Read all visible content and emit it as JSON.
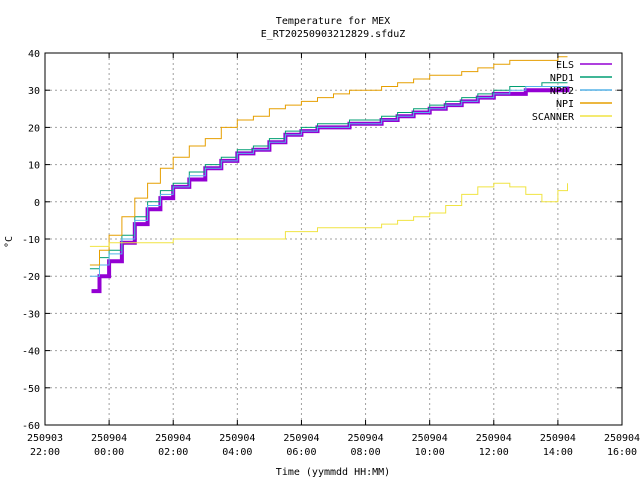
{
  "chart_data": {
    "type": "line",
    "title": "Temperature for MEX",
    "subtitle": "E_RT20250903212829.sfduZ",
    "xlabel": "Time (yymmdd HH:MM)",
    "ylabel": "°C",
    "xlim": [
      -2,
      16
    ],
    "ylim": [
      -60,
      40
    ],
    "yticks": [
      -60,
      -50,
      -40,
      -30,
      -20,
      -10,
      0,
      10,
      20,
      30,
      40
    ],
    "xticks": [
      {
        "x": -2,
        "date": "250903",
        "time": "22:00"
      },
      {
        "x": 0,
        "date": "250904",
        "time": "00:00"
      },
      {
        "x": 2,
        "date": "250904",
        "time": "02:00"
      },
      {
        "x": 4,
        "date": "250904",
        "time": "04:00"
      },
      {
        "x": 6,
        "date": "250904",
        "time": "06:00"
      },
      {
        "x": 8,
        "date": "250904",
        "time": "08:00"
      },
      {
        "x": 10,
        "date": "250904",
        "time": "10:00"
      },
      {
        "x": 12,
        "date": "250904",
        "time": "12:00"
      },
      {
        "x": 14,
        "date": "250904",
        "time": "14:00"
      },
      {
        "x": 16,
        "date": "250904",
        "time": "16:00"
      }
    ],
    "grid": true,
    "legend_position": "top-right",
    "series": [
      {
        "name": "ELS",
        "color": "#9400d3",
        "width": 4,
        "points": [
          [
            -0.55,
            -24
          ],
          [
            -0.3,
            -20
          ],
          [
            0,
            -16
          ],
          [
            0.4,
            -11
          ],
          [
            0.8,
            -6
          ],
          [
            1.2,
            -2
          ],
          [
            1.6,
            1
          ],
          [
            2,
            4
          ],
          [
            2.5,
            6
          ],
          [
            3,
            9
          ],
          [
            3.5,
            11
          ],
          [
            4,
            13
          ],
          [
            4.5,
            14
          ],
          [
            5,
            16
          ],
          [
            5.5,
            18
          ],
          [
            6,
            19
          ],
          [
            6.5,
            20
          ],
          [
            7,
            20
          ],
          [
            7.5,
            21
          ],
          [
            8,
            21
          ],
          [
            8.5,
            22
          ],
          [
            9,
            23
          ],
          [
            9.5,
            24
          ],
          [
            10,
            25
          ],
          [
            10.5,
            26
          ],
          [
            11,
            27
          ],
          [
            11.5,
            28
          ],
          [
            12,
            29
          ],
          [
            12.5,
            29
          ],
          [
            13,
            30
          ],
          [
            13.5,
            30
          ],
          [
            14,
            30
          ],
          [
            14.3,
            31
          ]
        ]
      },
      {
        "name": "NPD1",
        "color": "#009e73",
        "width": 1,
        "points": [
          [
            -0.6,
            -18
          ],
          [
            -0.3,
            -15
          ],
          [
            0,
            -13
          ],
          [
            0.4,
            -9
          ],
          [
            0.8,
            -4
          ],
          [
            1.2,
            0
          ],
          [
            1.6,
            3
          ],
          [
            2,
            5
          ],
          [
            2.5,
            8
          ],
          [
            3,
            10
          ],
          [
            3.5,
            12
          ],
          [
            4,
            14
          ],
          [
            4.5,
            15
          ],
          [
            5,
            17
          ],
          [
            5.5,
            19
          ],
          [
            6,
            20
          ],
          [
            6.5,
            21
          ],
          [
            7,
            21
          ],
          [
            7.5,
            22
          ],
          [
            8,
            22
          ],
          [
            8.5,
            23
          ],
          [
            9,
            24
          ],
          [
            9.5,
            25
          ],
          [
            10,
            26
          ],
          [
            10.5,
            27
          ],
          [
            11,
            28
          ],
          [
            11.5,
            29
          ],
          [
            12,
            30
          ],
          [
            12.5,
            31
          ],
          [
            13,
            31
          ],
          [
            13.5,
            32
          ],
          [
            14,
            32
          ],
          [
            14.3,
            32
          ]
        ]
      },
      {
        "name": "NPD2",
        "color": "#56b4e9",
        "width": 1,
        "points": [
          [
            -0.6,
            -20
          ],
          [
            -0.3,
            -17
          ],
          [
            0,
            -14
          ],
          [
            0.4,
            -10
          ],
          [
            0.8,
            -5
          ],
          [
            1.2,
            -1
          ],
          [
            1.6,
            2
          ],
          [
            2,
            4
          ],
          [
            2.5,
            7
          ],
          [
            3,
            9
          ],
          [
            3.5,
            11
          ],
          [
            4,
            13
          ],
          [
            4.5,
            14
          ],
          [
            5,
            16
          ],
          [
            5.5,
            18
          ],
          [
            6,
            19
          ],
          [
            6.5,
            20
          ],
          [
            7,
            20
          ],
          [
            7.5,
            21
          ],
          [
            8,
            21
          ],
          [
            8.5,
            22
          ],
          [
            9,
            23
          ],
          [
            9.5,
            24
          ],
          [
            10,
            25
          ],
          [
            10.5,
            26
          ],
          [
            11,
            27
          ],
          [
            11.5,
            28
          ],
          [
            12,
            29
          ],
          [
            12.5,
            30
          ],
          [
            13,
            31
          ],
          [
            13.5,
            31
          ],
          [
            14,
            31
          ],
          [
            14.3,
            31
          ]
        ]
      },
      {
        "name": "NPI",
        "color": "#e69f00",
        "width": 1,
        "points": [
          [
            -0.6,
            -17
          ],
          [
            -0.3,
            -13
          ],
          [
            0,
            -9
          ],
          [
            0.4,
            -4
          ],
          [
            0.8,
            1
          ],
          [
            1.2,
            5
          ],
          [
            1.6,
            9
          ],
          [
            2,
            12
          ],
          [
            2.5,
            15
          ],
          [
            3,
            17
          ],
          [
            3.5,
            20
          ],
          [
            4,
            22
          ],
          [
            4.5,
            23
          ],
          [
            5,
            25
          ],
          [
            5.5,
            26
          ],
          [
            6,
            27
          ],
          [
            6.5,
            28
          ],
          [
            7,
            29
          ],
          [
            7.5,
            30
          ],
          [
            8,
            30
          ],
          [
            8.5,
            31
          ],
          [
            9,
            32
          ],
          [
            9.5,
            33
          ],
          [
            10,
            34
          ],
          [
            10.5,
            34
          ],
          [
            11,
            35
          ],
          [
            11.5,
            36
          ],
          [
            12,
            37
          ],
          [
            12.5,
            38
          ],
          [
            13,
            38
          ],
          [
            13.5,
            38
          ],
          [
            14,
            39
          ],
          [
            14.3,
            39
          ]
        ]
      },
      {
        "name": "SCANNER",
        "color": "#f0e442",
        "width": 1,
        "points": [
          [
            -0.6,
            -12
          ],
          [
            0,
            -11
          ],
          [
            0.5,
            -11
          ],
          [
            1,
            -11
          ],
          [
            1.5,
            -11
          ],
          [
            2,
            -10
          ],
          [
            2.5,
            -10
          ],
          [
            3,
            -10
          ],
          [
            3.5,
            -10
          ],
          [
            4,
            -10
          ],
          [
            4.5,
            -10
          ],
          [
            5,
            -10
          ],
          [
            5.5,
            -8
          ],
          [
            6,
            -8
          ],
          [
            6.5,
            -7
          ],
          [
            7,
            -7
          ],
          [
            7.5,
            -7
          ],
          [
            8,
            -7
          ],
          [
            8.5,
            -6
          ],
          [
            9,
            -5
          ],
          [
            9.5,
            -4
          ],
          [
            10,
            -3
          ],
          [
            10.5,
            -1
          ],
          [
            11,
            2
          ],
          [
            11.5,
            4
          ],
          [
            12,
            5
          ],
          [
            12.5,
            4
          ],
          [
            13,
            2
          ],
          [
            13.5,
            0
          ],
          [
            14,
            3
          ],
          [
            14.3,
            5
          ]
        ]
      }
    ]
  }
}
